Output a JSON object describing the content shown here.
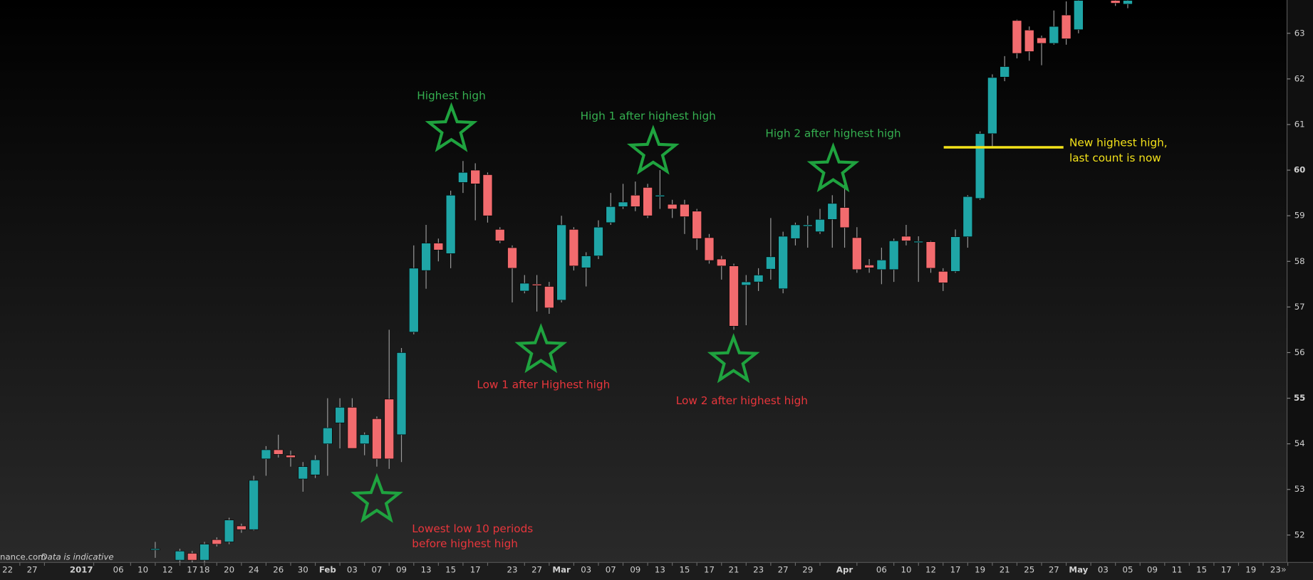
{
  "chart_data": {
    "type": "candlestick",
    "x": [
      12,
      14,
      15,
      16,
      17,
      18,
      19,
      20,
      21,
      22,
      23,
      24,
      25,
      26,
      27,
      28,
      29,
      30,
      31,
      32,
      33,
      34,
      35,
      36,
      37,
      38,
      39,
      40,
      41,
      42,
      43,
      44,
      45,
      46,
      47,
      48,
      49,
      50,
      51,
      52,
      53,
      54,
      55,
      56,
      57,
      58,
      59,
      60,
      61,
      62,
      63,
      64,
      65,
      66,
      67,
      68,
      69,
      70,
      71,
      72,
      73,
      74,
      75,
      76,
      77,
      78,
      79,
      80,
      81,
      82,
      83,
      84,
      85,
      86,
      87,
      90,
      91
    ],
    "open": [
      51.7,
      51.45,
      51.6,
      51.45,
      51.9,
      51.85,
      52.2,
      52.12,
      53.67,
      53.87,
      53.75,
      53.23,
      53.32,
      54.0,
      54.46,
      54.8,
      54.0,
      54.55,
      54.98,
      54.2,
      56.45,
      57.8,
      58.4,
      58.17,
      59.73,
      60.0,
      59.9,
      58.7,
      58.3,
      57.35,
      57.5,
      57.45,
      57.15,
      58.7,
      57.86,
      58.12,
      58.85,
      59.2,
      59.45,
      59.62,
      59.42,
      59.25,
      59.25,
      59.1,
      58.52,
      58.05,
      57.9,
      57.48,
      57.55,
      57.83,
      57.4,
      58.5,
      58.77,
      58.65,
      58.92,
      59.18,
      58.52,
      57.92,
      57.82,
      57.82,
      58.55,
      58.42,
      58.43,
      57.78,
      57.78,
      58.54,
      59.38,
      60.8,
      62.04,
      63.28,
      63.07,
      62.9,
      62.78,
      63.4,
      63.08,
      63.72,
      63.64
    ],
    "high": [
      51.85,
      51.7,
      51.65,
      51.85,
      51.95,
      52.38,
      52.25,
      53.3,
      53.95,
      54.2,
      53.85,
      53.6,
      53.75,
      55.0,
      55.0,
      55.0,
      54.25,
      54.6,
      56.5,
      56.1,
      58.35,
      58.8,
      58.5,
      59.55,
      60.2,
      60.15,
      59.95,
      58.75,
      58.35,
      57.7,
      57.7,
      57.55,
      59.0,
      58.75,
      58.2,
      58.9,
      59.5,
      59.7,
      59.75,
      59.7,
      60.0,
      59.35,
      59.35,
      59.15,
      58.6,
      58.12,
      57.95,
      57.7,
      57.85,
      58.95,
      58.65,
      58.85,
      59.0,
      59.15,
      59.45,
      59.8,
      58.75,
      58.05,
      58.3,
      58.5,
      58.8,
      58.55,
      58.45,
      57.85,
      58.7,
      59.45,
      60.85,
      62.1,
      62.5,
      63.3,
      63.15,
      62.95,
      63.5,
      63.7,
      63.73,
      63.73,
      63.73
    ],
    "low": [
      51.5,
      51.4,
      51.4,
      51.4,
      51.75,
      51.8,
      52.05,
      52.1,
      53.3,
      53.7,
      53.5,
      52.95,
      53.25,
      53.3,
      53.9,
      53.9,
      53.75,
      53.5,
      53.45,
      53.6,
      56.4,
      57.4,
      58.0,
      57.85,
      59.5,
      58.9,
      58.85,
      58.4,
      57.1,
      57.3,
      56.9,
      56.85,
      57.1,
      57.8,
      57.45,
      58.05,
      58.8,
      59.15,
      59.1,
      58.95,
      59.15,
      58.95,
      58.6,
      58.25,
      57.95,
      57.6,
      56.5,
      56.6,
      57.35,
      57.6,
      57.3,
      58.35,
      58.3,
      58.6,
      58.3,
      58.3,
      57.75,
      57.75,
      57.5,
      57.55,
      58.35,
      57.55,
      57.75,
      57.35,
      57.75,
      58.3,
      59.35,
      60.5,
      61.95,
      62.45,
      62.4,
      62.3,
      62.75,
      62.75,
      63.0,
      63.6,
      63.55
    ],
    "close": [
      51.7,
      51.65,
      51.45,
      51.8,
      51.8,
      52.33,
      52.12,
      53.2,
      53.87,
      53.77,
      53.7,
      53.5,
      53.65,
      54.35,
      54.8,
      53.9,
      54.2,
      53.67,
      53.67,
      56.0,
      57.85,
      58.4,
      58.25,
      59.45,
      59.95,
      59.7,
      59.0,
      58.45,
      57.85,
      57.52,
      57.47,
      56.98,
      58.8,
      57.9,
      58.12,
      58.75,
      59.2,
      59.3,
      59.2,
      59.0,
      59.45,
      59.15,
      58.98,
      58.5,
      58.02,
      57.9,
      56.58,
      57.55,
      57.7,
      58.1,
      58.55,
      58.8,
      58.8,
      58.92,
      59.27,
      58.74,
      57.82,
      57.86,
      58.03,
      58.45,
      58.45,
      58.44,
      57.85,
      57.53,
      58.54,
      59.42,
      60.8,
      62.03,
      62.27,
      62.56,
      62.6,
      62.78,
      63.15,
      62.88,
      63.72,
      63.66,
      63.72
    ],
    "up_color": "#1fa5a6",
    "down_color": "#f26b6e",
    "xlim": [
      -0.612,
      103.94
    ],
    "ylim": [
      51.4,
      63.73
    ],
    "yticks": [
      52,
      53,
      54,
      55,
      56,
      57,
      58,
      59,
      60,
      61,
      62,
      63
    ],
    "xticks": [
      {
        "value": 0,
        "label": "22"
      },
      {
        "value": 2,
        "label": "27"
      },
      {
        "value": 6,
        "label": "2017"
      },
      {
        "value": 9,
        "label": "06"
      },
      {
        "value": 11,
        "label": "10"
      },
      {
        "value": 13,
        "label": "12"
      },
      {
        "value": 15,
        "label": "17"
      },
      {
        "value": 16,
        "label": "18"
      },
      {
        "value": 18,
        "label": "20"
      },
      {
        "value": 20,
        "label": "24"
      },
      {
        "value": 22,
        "label": "26"
      },
      {
        "value": 24,
        "label": "30"
      },
      {
        "value": 26,
        "label": "Feb"
      },
      {
        "value": 28,
        "label": "03"
      },
      {
        "value": 30,
        "label": "07"
      },
      {
        "value": 32,
        "label": "09"
      },
      {
        "value": 34,
        "label": "13"
      },
      {
        "value": 36,
        "label": "15"
      },
      {
        "value": 38,
        "label": "17"
      },
      {
        "value": 41,
        "label": "23"
      },
      {
        "value": 43,
        "label": "27"
      },
      {
        "value": 45,
        "label": "Mar"
      },
      {
        "value": 47,
        "label": "03"
      },
      {
        "value": 49,
        "label": "07"
      },
      {
        "value": 51,
        "label": "09"
      },
      {
        "value": 53,
        "label": "13"
      },
      {
        "value": 55,
        "label": "15"
      },
      {
        "value": 57,
        "label": "17"
      },
      {
        "value": 59,
        "label": "21"
      },
      {
        "value": 61,
        "label": "23"
      },
      {
        "value": 63,
        "label": "27"
      },
      {
        "value": 65,
        "label": "29"
      },
      {
        "value": 68,
        "label": "Apr"
      },
      {
        "value": 71,
        "label": "06"
      },
      {
        "value": 73,
        "label": "10"
      },
      {
        "value": 75,
        "label": "12"
      },
      {
        "value": 77,
        "label": "17"
      },
      {
        "value": 79,
        "label": "19"
      },
      {
        "value": 81,
        "label": "21"
      },
      {
        "value": 83,
        "label": "25"
      },
      {
        "value": 85,
        "label": "27"
      },
      {
        "value": 87,
        "label": "May"
      },
      {
        "value": 89,
        "label": "03"
      },
      {
        "value": 91,
        "label": "05"
      },
      {
        "value": 93,
        "label": "09"
      },
      {
        "value": 95,
        "label": "11"
      },
      {
        "value": 97,
        "label": "15"
      },
      {
        "value": 99,
        "label": "17"
      },
      {
        "value": 101,
        "label": "19"
      },
      {
        "value": 103,
        "label": "23"
      }
    ],
    "annotations": [
      {
        "lines": [
          "Highest high"
        ],
        "color": "#35b050"
      },
      {
        "lines": [
          "High 1 after highest high"
        ],
        "color": "#35b050"
      },
      {
        "lines": [
          "High 2 after highest high"
        ],
        "color": "#35b050"
      },
      {
        "lines": [
          "Low 1 after Highest high"
        ],
        "color": "#e8363c"
      },
      {
        "lines": [
          "Low 2 after highest high"
        ],
        "color": "#e8363c"
      },
      {
        "lines": [
          "Lowest low 10 periods",
          "before highest high"
        ],
        "color": "#e8363c"
      },
      {
        "lines": [
          "New highest high,",
          "last count is now"
        ],
        "color": "#f3e21a"
      }
    ],
    "reference_line": {
      "value": 60.5,
      "color": "#f3e21a"
    },
    "source": "nance.com",
    "note": "Data is indicative"
  }
}
